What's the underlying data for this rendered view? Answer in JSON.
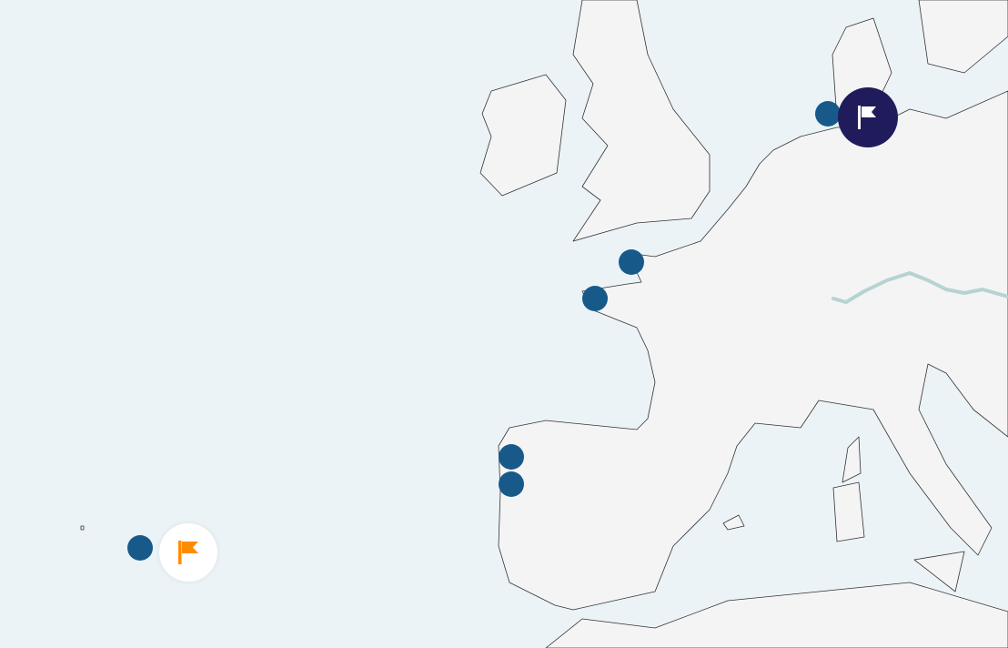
{
  "map": {
    "colors": {
      "sea": "#ebf3f7",
      "land": "#f4f4f4",
      "border": "#333333",
      "river": "#b5d3d2"
    },
    "markers": [
      {
        "type": "point",
        "color": "#175a8a"
      },
      {
        "type": "point",
        "color": "#175a8a"
      },
      {
        "type": "point",
        "color": "#175a8a"
      },
      {
        "type": "point",
        "color": "#175a8a"
      },
      {
        "type": "point",
        "color": "#175a8a"
      },
      {
        "type": "point",
        "color": "#175a8a"
      }
    ],
    "selected_marker": {
      "icon": "flag-icon",
      "background": "#201c5c",
      "icon_color": "#ffffff"
    },
    "origin_marker": {
      "icon": "flag-icon",
      "background": "#ffffff",
      "icon_color": "#ff8c00"
    }
  }
}
